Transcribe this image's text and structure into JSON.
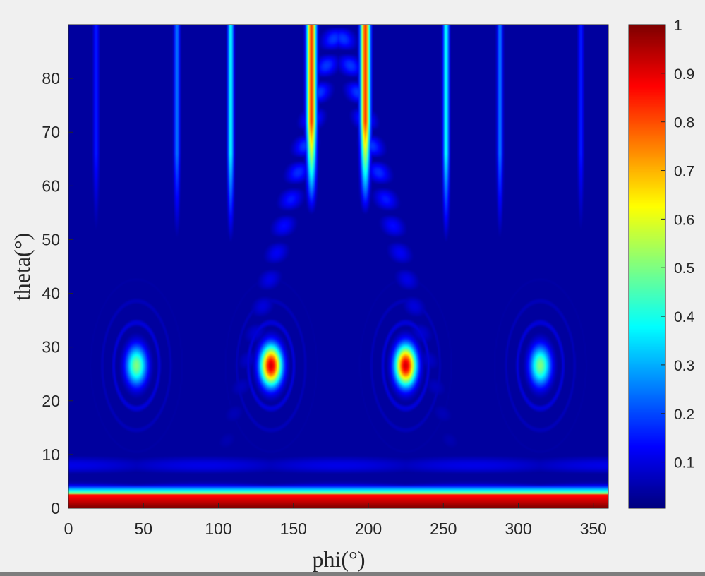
{
  "chart_data": {
    "type": "heatmap",
    "title": "",
    "xlabel": "phi(°)",
    "ylabel": "theta(°)",
    "xlim": [
      0,
      360
    ],
    "ylim": [
      0,
      90
    ],
    "xticks": [
      0,
      50,
      100,
      150,
      200,
      250,
      300,
      350
    ],
    "yticks": [
      0,
      10,
      20,
      30,
      40,
      50,
      60,
      70,
      80
    ],
    "colormap": "jet",
    "color_range": [
      0,
      1
    ],
    "colorbar_ticks": [
      0.1,
      0.2,
      0.3,
      0.4,
      0.5,
      0.6,
      0.7,
      0.8,
      0.9,
      1
    ],
    "colorbar_tick_labels": [
      "0.1",
      "0.2",
      "0.3",
      "0.4",
      "0.5",
      "0.6",
      "0.7",
      "0.8",
      "0.9",
      "1"
    ],
    "features": {
      "floor_band": {
        "theta_max": 2.5,
        "value": 1.0
      },
      "secondary_band": {
        "theta_max": 4.0,
        "value": 0.55
      },
      "peaks": [
        {
          "phi": 45,
          "theta": 26.5,
          "value": 0.5
        },
        {
          "phi": 135,
          "theta": 26.5,
          "value": 0.92
        },
        {
          "phi": 225,
          "theta": 26.5,
          "value": 0.92
        },
        {
          "phi": 315,
          "theta": 26.5,
          "value": 0.5
        }
      ],
      "vertical_streaks": [
        {
          "phi": 162,
          "value": 0.82
        },
        {
          "phi": 198,
          "value": 0.82
        },
        {
          "phi": 108,
          "value": 0.38
        },
        {
          "phi": 252,
          "value": 0.38
        },
        {
          "phi": 72,
          "value": 0.24
        },
        {
          "phi": 288,
          "value": 0.24
        },
        {
          "phi": 18,
          "value": 0.15
        },
        {
          "phi": 342,
          "value": 0.15
        }
      ]
    }
  },
  "colors": {
    "background": "#f0f0f0",
    "colormap_low": "#00008f",
    "colormap_high": "#800000",
    "axis": "#262626"
  }
}
